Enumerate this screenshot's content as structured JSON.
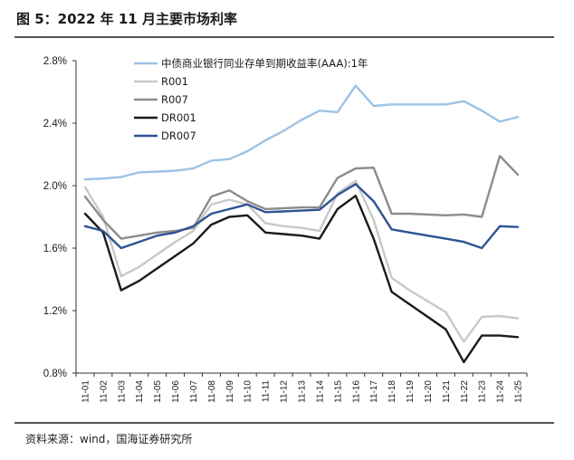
{
  "header": {
    "title": "图 5：2022 年 11 月主要市场利率"
  },
  "footer": {
    "source": "资料来源：wind，国海证券研究所"
  },
  "chart_data": {
    "type": "line",
    "title": "2022 年 11 月主要市场利率",
    "xlabel": "",
    "ylabel": "",
    "ylim": [
      0.8,
      2.8
    ],
    "yticks": [
      0.8,
      1.2,
      1.6,
      2.0,
      2.4,
      2.8
    ],
    "ytick_labels": [
      "0.8%",
      "1.2%",
      "1.6%",
      "2.0%",
      "2.4%",
      "2.8%"
    ],
    "legend_position": "top-left",
    "categories": [
      "11-01",
      "11-02",
      "11-03",
      "11-04",
      "11-05",
      "11-06",
      "11-07",
      "11-08",
      "11-09",
      "11-10",
      "11-11",
      "11-12",
      "11-13",
      "11-14",
      "11-15",
      "11-16",
      "11-17",
      "11-18",
      "11-19",
      "11-20",
      "11-21",
      "11-22",
      "11-23",
      "11-24",
      "11-25"
    ],
    "series": [
      {
        "name": "中债商业银行同业存单到期收益率(AAA):1年",
        "color": "#9dc3e6",
        "values": [
          2.04,
          2.045,
          2.055,
          2.085,
          2.09,
          2.095,
          2.11,
          2.16,
          2.17,
          2.22,
          2.29,
          2.35,
          2.42,
          2.48,
          2.47,
          2.64,
          2.51,
          2.52,
          2.52,
          2.52,
          2.52,
          2.54,
          2.48,
          2.41,
          2.44
        ]
      },
      {
        "name": "R001",
        "color": "#c8c8c8",
        "values": [
          1.99,
          1.8,
          1.42,
          1.48,
          1.56,
          1.64,
          1.71,
          1.88,
          1.91,
          1.88,
          1.76,
          1.74,
          1.73,
          1.71,
          1.95,
          2.03,
          1.78,
          1.41,
          1.33,
          1.26,
          1.19,
          1.0,
          1.16,
          1.165,
          1.15
        ]
      },
      {
        "name": "R007",
        "color": "#8c8c8c",
        "values": [
          1.93,
          1.78,
          1.66,
          1.68,
          1.7,
          1.71,
          1.73,
          1.93,
          1.97,
          1.9,
          1.85,
          1.855,
          1.86,
          1.86,
          2.05,
          2.11,
          2.115,
          1.82,
          1.82,
          1.815,
          1.81,
          1.815,
          1.8,
          2.19,
          2.07
        ]
      },
      {
        "name": "DR001",
        "color": "#1a1a1a",
        "values": [
          1.82,
          1.7,
          1.33,
          1.39,
          1.47,
          1.55,
          1.63,
          1.75,
          1.8,
          1.81,
          1.7,
          1.69,
          1.68,
          1.66,
          1.85,
          1.935,
          1.66,
          1.32,
          1.24,
          1.16,
          1.08,
          0.87,
          1.04,
          1.04,
          1.03
        ]
      },
      {
        "name": "DR007",
        "color": "#2e5395",
        "values": [
          1.74,
          1.71,
          1.6,
          1.64,
          1.68,
          1.7,
          1.74,
          1.82,
          1.85,
          1.88,
          1.83,
          1.835,
          1.84,
          1.845,
          1.94,
          2.01,
          1.9,
          1.72,
          1.7,
          1.68,
          1.66,
          1.64,
          1.6,
          1.74,
          1.735
        ]
      }
    ]
  }
}
